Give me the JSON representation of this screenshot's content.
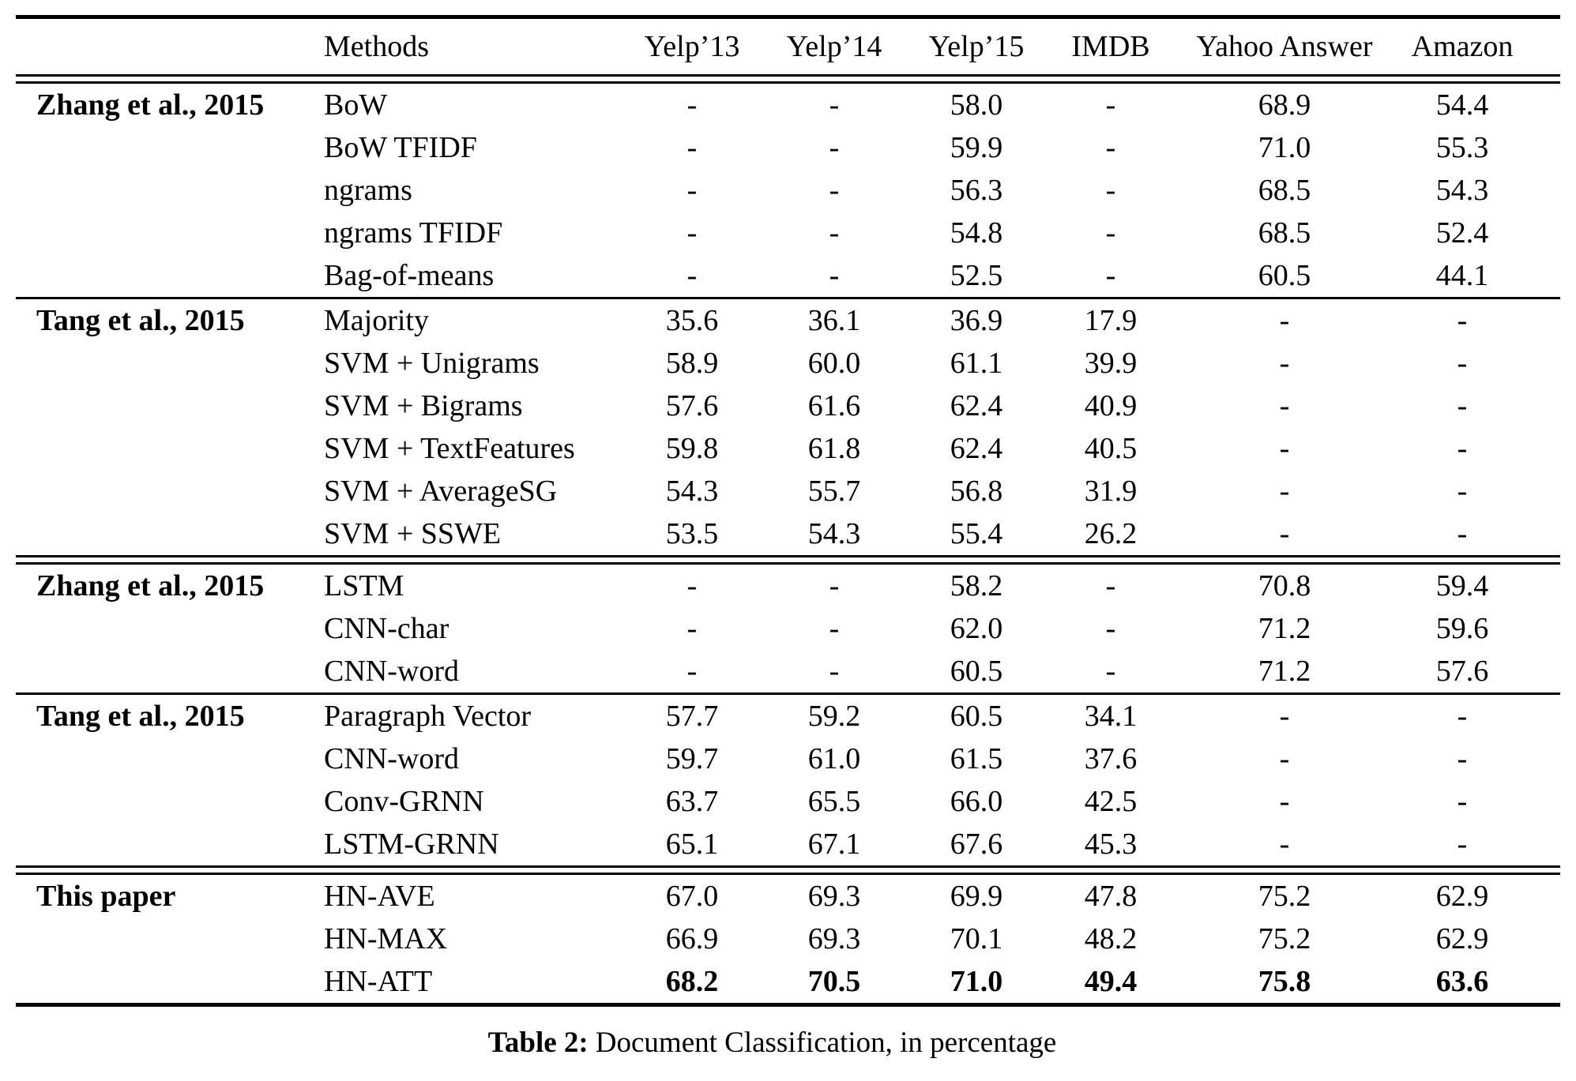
{
  "page": {
    "background_color": "#ffffff",
    "text_color": "#000000"
  },
  "table": {
    "header": {
      "methods_label": "Methods",
      "dataset_columns": [
        "Yelp’13",
        "Yelp’14",
        "Yelp’15",
        "IMDB",
        "Yahoo Answer",
        "Amazon"
      ]
    },
    "groups": [
      {
        "label": "Zhang et al., 2015",
        "rule_after": "single",
        "rows": [
          {
            "method": "BoW",
            "values": [
              "-",
              "-",
              "58.0",
              "-",
              "68.9",
              "54.4"
            ],
            "bold_values": false
          },
          {
            "method": "BoW TFIDF",
            "values": [
              "-",
              "-",
              "59.9",
              "-",
              "71.0",
              "55.3"
            ],
            "bold_values": false
          },
          {
            "method": "ngrams",
            "values": [
              "-",
              "-",
              "56.3",
              "-",
              "68.5",
              "54.3"
            ],
            "bold_values": false
          },
          {
            "method": "ngrams TFIDF",
            "values": [
              "-",
              "-",
              "54.8",
              "-",
              "68.5",
              "52.4"
            ],
            "bold_values": false
          },
          {
            "method": "Bag-of-means",
            "values": [
              "-",
              "-",
              "52.5",
              "-",
              "60.5",
              "44.1"
            ],
            "bold_values": false
          }
        ]
      },
      {
        "label": "Tang et al., 2015",
        "rule_after": "double",
        "rows": [
          {
            "method": "Majority",
            "values": [
              "35.6",
              "36.1",
              "36.9",
              "17.9",
              "-",
              "-"
            ],
            "bold_values": false
          },
          {
            "method": "SVM + Unigrams",
            "values": [
              "58.9",
              "60.0",
              "61.1",
              "39.9",
              "-",
              "-"
            ],
            "bold_values": false
          },
          {
            "method": "SVM + Bigrams",
            "values": [
              "57.6",
              "61.6",
              "62.4",
              "40.9",
              "-",
              "-"
            ],
            "bold_values": false
          },
          {
            "method": "SVM + TextFeatures",
            "values": [
              "59.8",
              "61.8",
              "62.4",
              "40.5",
              "-",
              "-"
            ],
            "bold_values": false
          },
          {
            "method": "SVM + AverageSG",
            "values": [
              "54.3",
              "55.7",
              "56.8",
              "31.9",
              "-",
              "-"
            ],
            "bold_values": false
          },
          {
            "method": "SVM + SSWE",
            "values": [
              "53.5",
              "54.3",
              "55.4",
              "26.2",
              "-",
              "-"
            ],
            "bold_values": false
          }
        ]
      },
      {
        "label": "Zhang et al., 2015",
        "rule_after": "single",
        "rows": [
          {
            "method": "LSTM",
            "values": [
              "-",
              "-",
              "58.2",
              "-",
              "70.8",
              "59.4"
            ],
            "bold_values": false
          },
          {
            "method": "CNN-char",
            "values": [
              "-",
              "-",
              "62.0",
              "-",
              "71.2",
              "59.6"
            ],
            "bold_values": false
          },
          {
            "method": "CNN-word",
            "values": [
              "-",
              "-",
              "60.5",
              "-",
              "71.2",
              "57.6"
            ],
            "bold_values": false
          }
        ]
      },
      {
        "label": "Tang et al., 2015",
        "rule_after": "double",
        "rows": [
          {
            "method": "Paragraph Vector",
            "values": [
              "57.7",
              "59.2",
              "60.5",
              "34.1",
              "-",
              "-"
            ],
            "bold_values": false
          },
          {
            "method": "CNN-word",
            "values": [
              "59.7",
              "61.0",
              "61.5",
              "37.6",
              "-",
              "-"
            ],
            "bold_values": false
          },
          {
            "method": "Conv-GRNN",
            "values": [
              "63.7",
              "65.5",
              "66.0",
              "42.5",
              "-",
              "-"
            ],
            "bold_values": false
          },
          {
            "method": "LSTM-GRNN",
            "values": [
              "65.1",
              "67.1",
              "67.6",
              "45.3",
              "-",
              "-"
            ],
            "bold_values": false
          }
        ]
      },
      {
        "label": "This paper",
        "rule_after": "none",
        "rows": [
          {
            "method": "HN-AVE",
            "values": [
              "67.0",
              "69.3",
              "69.9",
              "47.8",
              "75.2",
              "62.9"
            ],
            "bold_values": false
          },
          {
            "method": "HN-MAX",
            "values": [
              "66.9",
              "69.3",
              "70.1",
              "48.2",
              "75.2",
              "62.9"
            ],
            "bold_values": false
          },
          {
            "method": "HN-ATT",
            "values": [
              "68.2",
              "70.5",
              "71.0",
              "49.4",
              "75.8",
              "63.6"
            ],
            "bold_values": true
          }
        ]
      }
    ],
    "caption": {
      "label": "Table 2:",
      "text": "Document Classification, in percentage"
    }
  }
}
